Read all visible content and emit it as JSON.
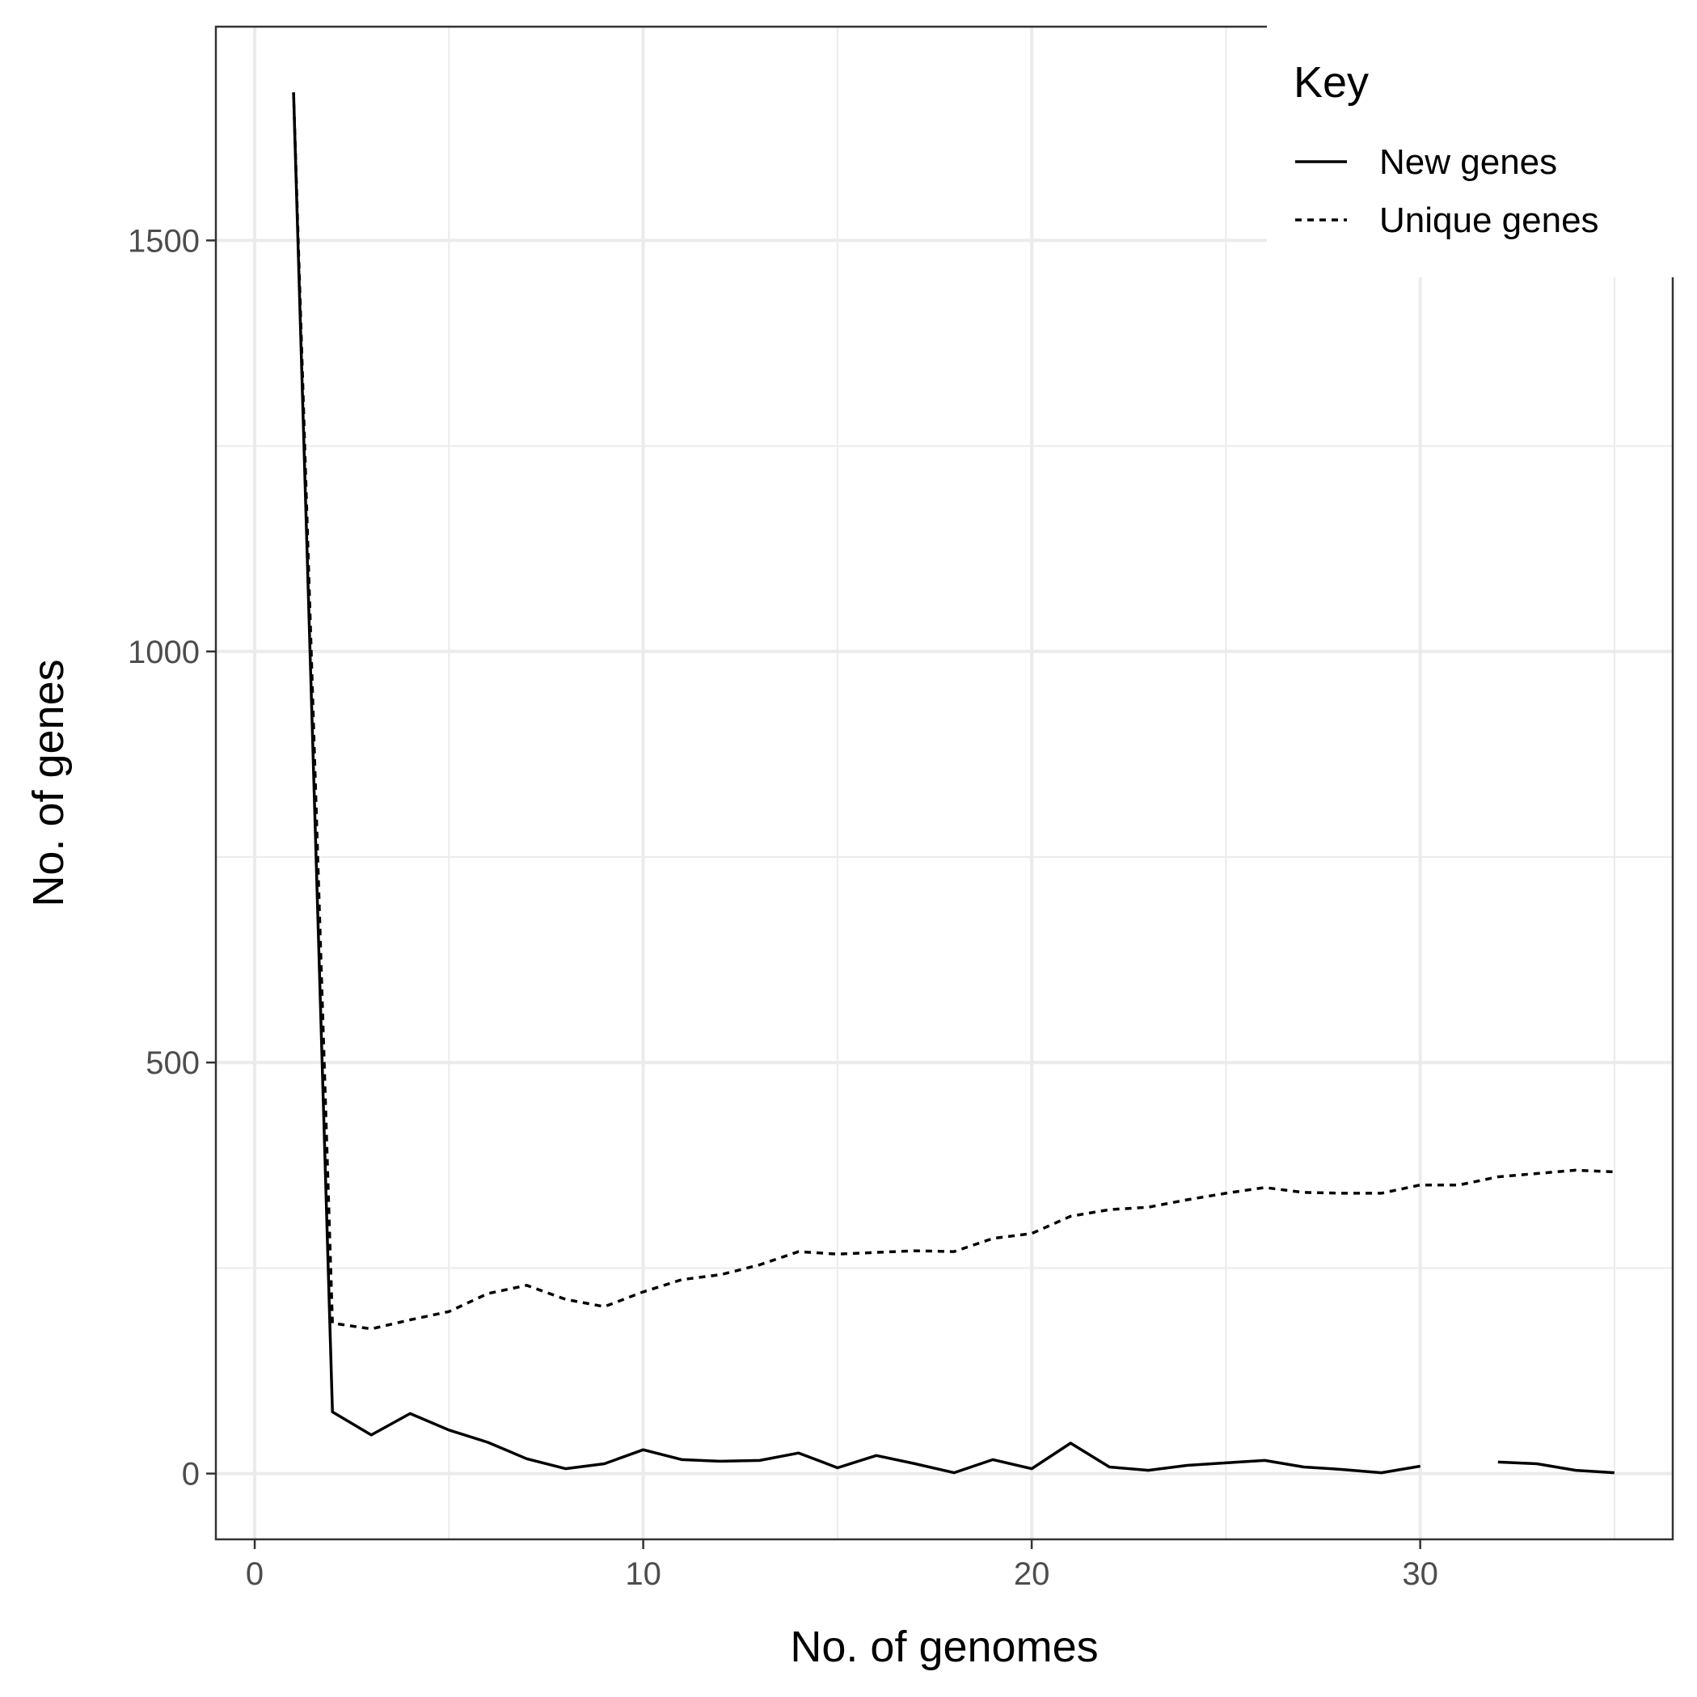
{
  "chart_data": {
    "type": "line",
    "xlabel": "No. of genomes",
    "ylabel": "No. of genes",
    "xlim": [
      -1,
      36.5
    ],
    "ylim": [
      -80,
      1760
    ],
    "x_ticks": [
      0,
      10,
      20,
      30
    ],
    "x_tick_labels": [
      "0",
      "10",
      "20",
      "30"
    ],
    "y_ticks": [
      0,
      500,
      1000,
      1500
    ],
    "y_tick_labels": [
      "0",
      "500",
      "1000",
      "1500"
    ],
    "x_minor_grid": [
      5,
      15,
      25,
      35
    ],
    "y_minor_grid": [
      250,
      750,
      1250
    ],
    "grid": true,
    "legend": {
      "title": "Key",
      "placement": "top-right",
      "entries": [
        {
          "label": "New genes",
          "linetype": "solid"
        },
        {
          "label": "Unique genes",
          "linetype": "dotted"
        }
      ]
    },
    "series": [
      {
        "name": "New genes",
        "linetype": "solid",
        "color": "#000000",
        "x": [
          1,
          2,
          3,
          4,
          5,
          6,
          7,
          8,
          9,
          10,
          11,
          12,
          13,
          14,
          15,
          16,
          17,
          18,
          19,
          20,
          21,
          22,
          23,
          24,
          25,
          26,
          27,
          28,
          29,
          30,
          31,
          32,
          33,
          34,
          35
        ],
        "y": [
          1680,
          75,
          47,
          73,
          53,
          38,
          18,
          6,
          12,
          29,
          17,
          15,
          16,
          25,
          7,
          22,
          12,
          1,
          17,
          6,
          37,
          8,
          4,
          10,
          13,
          16,
          8,
          5,
          1,
          9,
          null,
          14,
          12,
          4,
          1
        ]
      },
      {
        "name": "Unique genes",
        "linetype": "dotted",
        "color": "#000000",
        "x": [
          1,
          2,
          3,
          4,
          5,
          6,
          7,
          8,
          9,
          10,
          11,
          12,
          13,
          14,
          15,
          16,
          17,
          18,
          19,
          20,
          21,
          22,
          23,
          24,
          25,
          26,
          27,
          28,
          29,
          30,
          31,
          32,
          33,
          34,
          35
        ],
        "y": [
          1680,
          183,
          176,
          187,
          197,
          219,
          229,
          212,
          203,
          221,
          236,
          242,
          254,
          270,
          267,
          269,
          271,
          270,
          286,
          292,
          313,
          321,
          324,
          333,
          341,
          348,
          342,
          341,
          341,
          351,
          351,
          361,
          365,
          369,
          367
        ]
      }
    ]
  }
}
